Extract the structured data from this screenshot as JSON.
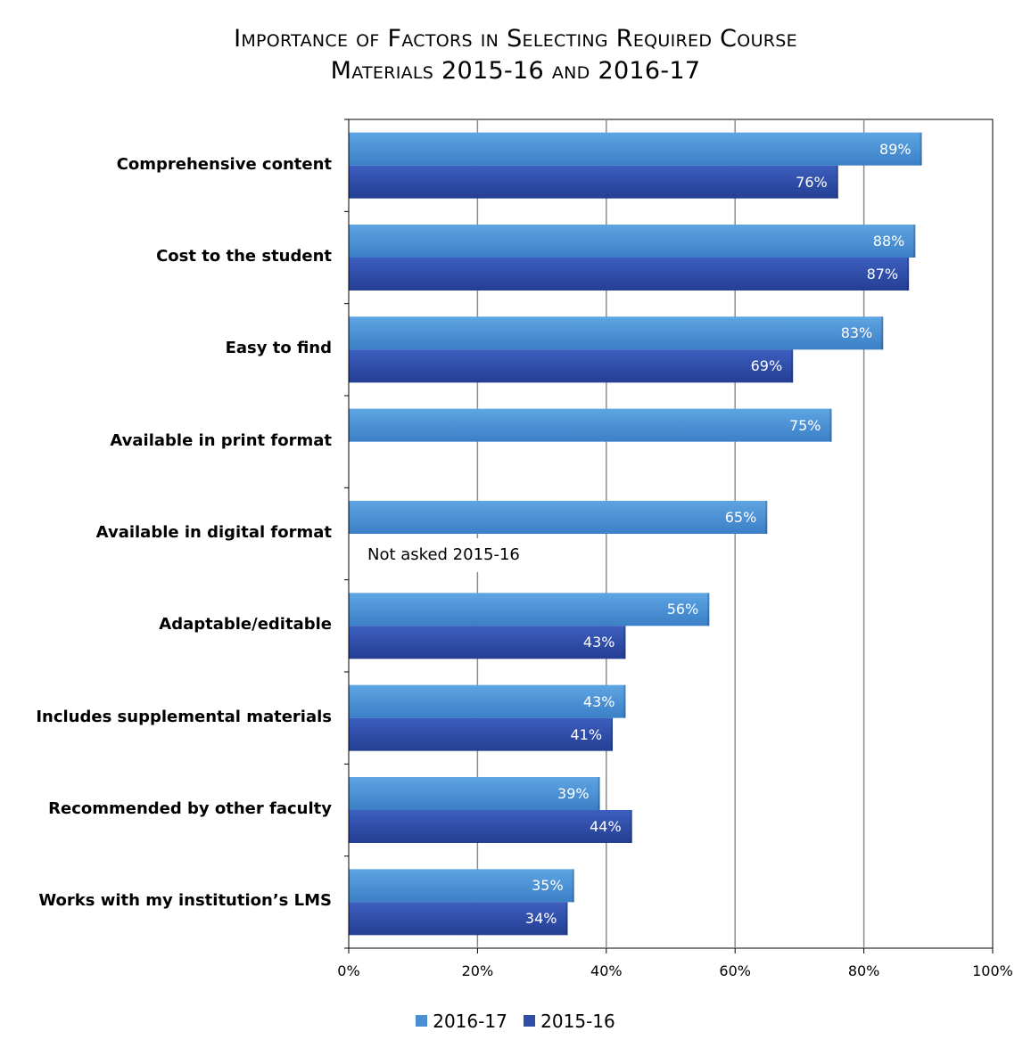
{
  "chart_data": {
    "type": "bar",
    "orientation": "horizontal",
    "title_line1": "Importance of Factors in Selecting Required Course",
    "title_line2": "Materials 2015-16 and 2016-17",
    "categories": [
      "Comprehensive content",
      "Cost to the student",
      "Easy to find",
      "Available in print format",
      "Available in digital format",
      "Adaptable/editable",
      "Includes supplemental materials",
      "Recommended by other faculty",
      "Works with my institution’s LMS"
    ],
    "series": [
      {
        "name": "2016-17",
        "color": "#4a8fd4",
        "values": [
          89,
          88,
          83,
          75,
          65,
          56,
          43,
          39,
          35
        ],
        "labels": [
          "89%",
          "88%",
          "83%",
          "75%",
          "65%",
          "56%",
          "43%",
          "39%",
          "35%"
        ]
      },
      {
        "name": "2015-16",
        "color": "#2f4ea8",
        "values": [
          76,
          87,
          69,
          null,
          null,
          43,
          41,
          44,
          34
        ],
        "labels": [
          "76%",
          "87%",
          "69%",
          null,
          null,
          "43%",
          "41%",
          "44%",
          "34%"
        ]
      }
    ],
    "xlim": [
      0,
      100
    ],
    "xticks": [
      "0%",
      "20%",
      "40%",
      "60%",
      "80%",
      "100%"
    ],
    "grid": true,
    "legend_position": "bottom",
    "annotation": "Not asked 2015-16"
  }
}
